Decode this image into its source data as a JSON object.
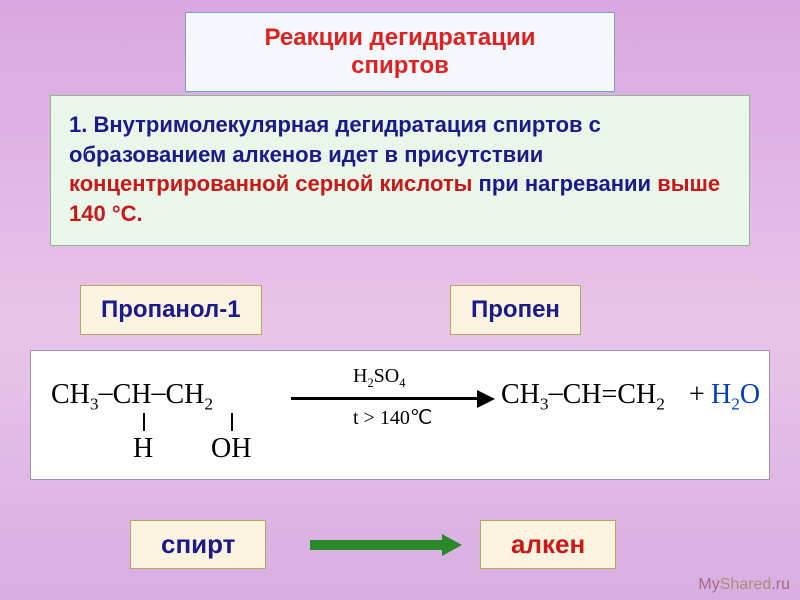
{
  "title": {
    "line1": "Реакции дегидратации",
    "line2": "спиртов"
  },
  "description": {
    "seg1": "1. Внутримолекулярная дегидратация спиртов с образованием алкенов идет в присутствии ",
    "seg2": "концентрированной серной кислоты",
    "seg3": " при нагревании ",
    "seg4": "выше 140 °С."
  },
  "labels": {
    "propanol": "Пропанол-1",
    "propene": "Пропен",
    "spirt": "спирт",
    "alken": "алкен"
  },
  "reaction": {
    "reactant_ch3": "CH",
    "reactant_sub3": "3",
    "reactant_ch": "CH",
    "reactant_ch2": "CH",
    "reactant_sub2": "2",
    "h_atom": "H",
    "oh_group": "OH",
    "arrow_top_h2so4": "H",
    "arrow_top_sub2": "2",
    "arrow_top_so4": "SO",
    "arrow_top_sub4": "4",
    "arrow_bot_t": "t > 140℃",
    "product_ch3": "CH",
    "product_sub3": "3",
    "product_ch": "CH=CH",
    "product_sub2": "2",
    "plus": "+",
    "water_h2o_h": "H",
    "water_sub2": "2",
    "water_o": "O"
  },
  "styling": {
    "bg_gradient_top": "#d9a8e0",
    "bg_gradient_bottom": "#d8aee2",
    "title_bg": "#f4f7fc",
    "title_border": "#7aa0d0",
    "title_color": "#d22",
    "desc_bg": "#eaf6ea",
    "desc_border": "#8eb98e",
    "desc_blue": "#1a1a8a",
    "desc_red": "#c81818",
    "label_bg": "#faf3df",
    "label_border": "#bba65a",
    "reaction_bg": "#ffffff",
    "reaction_border": "#a090c0",
    "water_color": "#0040c0",
    "trans_arrow_color": "#2a8a2a",
    "title_fontsize": 24,
    "desc_fontsize": 22,
    "label_fontsize": 24,
    "formula_fontsize": 28,
    "bottom_label_fontsize": 26
  },
  "watermark": {
    "part1": "My",
    "part2": "Shared",
    "part3": ".ru"
  }
}
